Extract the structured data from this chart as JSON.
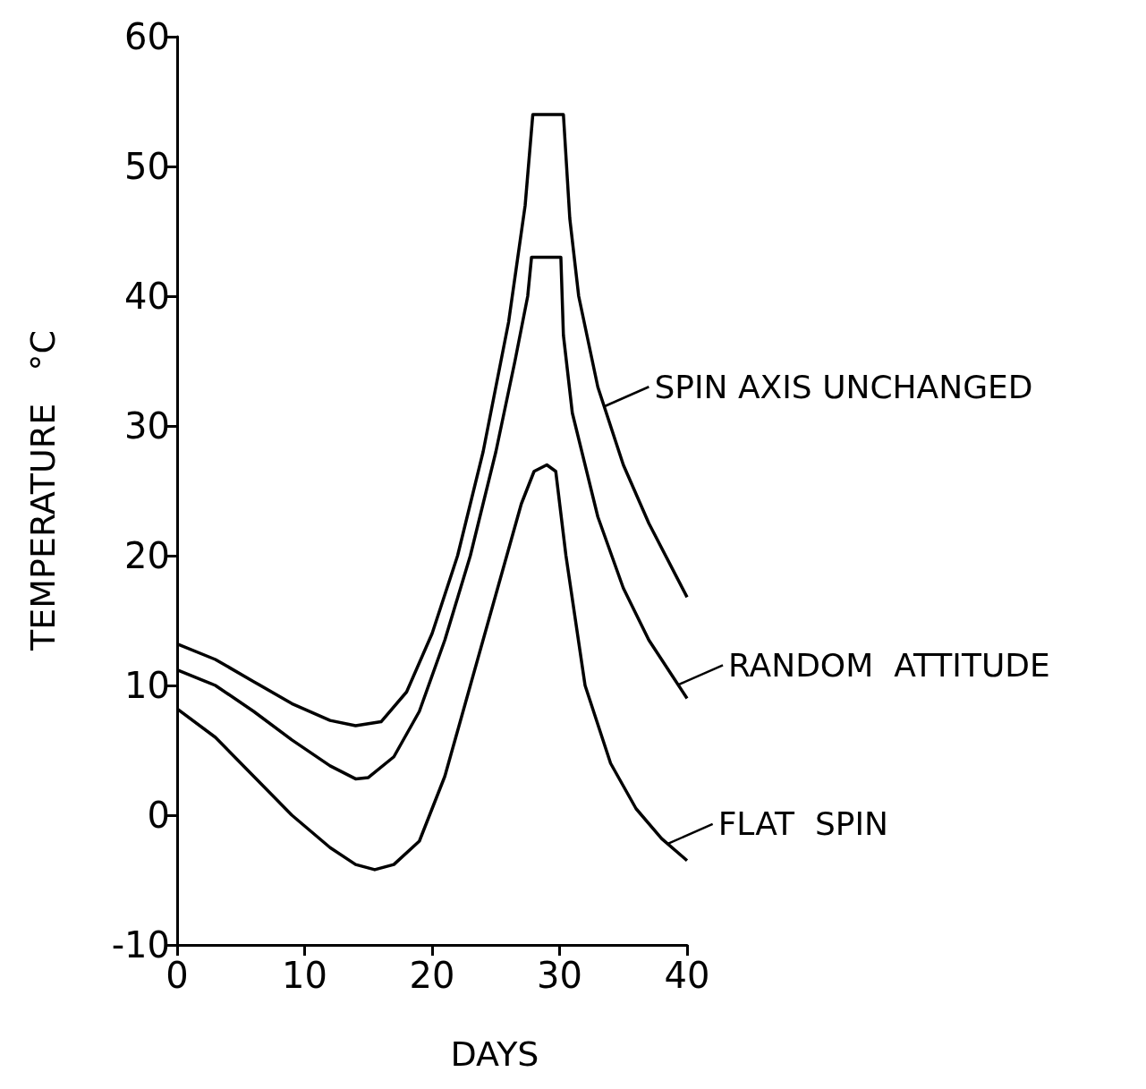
{
  "chart_data": {
    "type": "line",
    "xlabel": "DAYS",
    "ylabel": "TEMPERATURE   °C",
    "xlim": [
      0,
      40
    ],
    "xticks": [
      0,
      10,
      20,
      30,
      40
    ],
    "ylim": [
      -10,
      60
    ],
    "yticks": [
      -10,
      0,
      10,
      20,
      30,
      40,
      50,
      60
    ],
    "grid": false,
    "marker": "none",
    "line_style": "solid",
    "series": [
      {
        "color": "#000000",
        "x": [
          0,
          3,
          6,
          9,
          12,
          14,
          16,
          18,
          20,
          22,
          24,
          26,
          27.3,
          27.9,
          30.3,
          30.8,
          31.5,
          33,
          35,
          37,
          40
        ],
        "values": [
          13.2,
          12,
          10.3,
          8.6,
          7.3,
          6.9,
          7.2,
          9.5,
          14,
          20,
          28,
          38,
          47,
          54,
          54,
          46,
          40,
          33,
          27,
          22.5,
          16.8
        ]
      },
      {
        "color": "#000000",
        "x": [
          0,
          3,
          6,
          9,
          12,
          14,
          15,
          17,
          19,
          21,
          23,
          25,
          26.5,
          27.5,
          27.8,
          30.1,
          30.3,
          31,
          33,
          35,
          37,
          40
        ],
        "values": [
          11.2,
          10,
          8,
          5.8,
          3.8,
          2.8,
          2.9,
          4.5,
          8,
          13.5,
          20,
          28,
          35,
          40,
          43,
          43,
          37,
          31,
          23,
          17.5,
          13.5,
          9
        ]
      },
      {
        "color": "#000000",
        "x": [
          0,
          3,
          6,
          9,
          12,
          14,
          15.5,
          17,
          19,
          21,
          23,
          25,
          27,
          28,
          29,
          29.7,
          30.5,
          32,
          34,
          36,
          38,
          40
        ],
        "values": [
          8.2,
          6,
          3,
          0,
          -2.5,
          -3.8,
          -4.2,
          -3.8,
          -2,
          3,
          10,
          17,
          24,
          26.5,
          27,
          26.5,
          20,
          10,
          4,
          0.5,
          -1.8,
          -3.5
        ]
      }
    ],
    "annotations": [
      {
        "text": "SPIN AXIS UNCHANGED",
        "x": 33.5,
        "y": 31.5
      },
      {
        "text": "RANDOM  ATTITUDE",
        "x": 39.3,
        "y": 10.05
      },
      {
        "text": "FLAT  SPIN",
        "x": 38.5,
        "y": -2.2
      }
    ]
  }
}
